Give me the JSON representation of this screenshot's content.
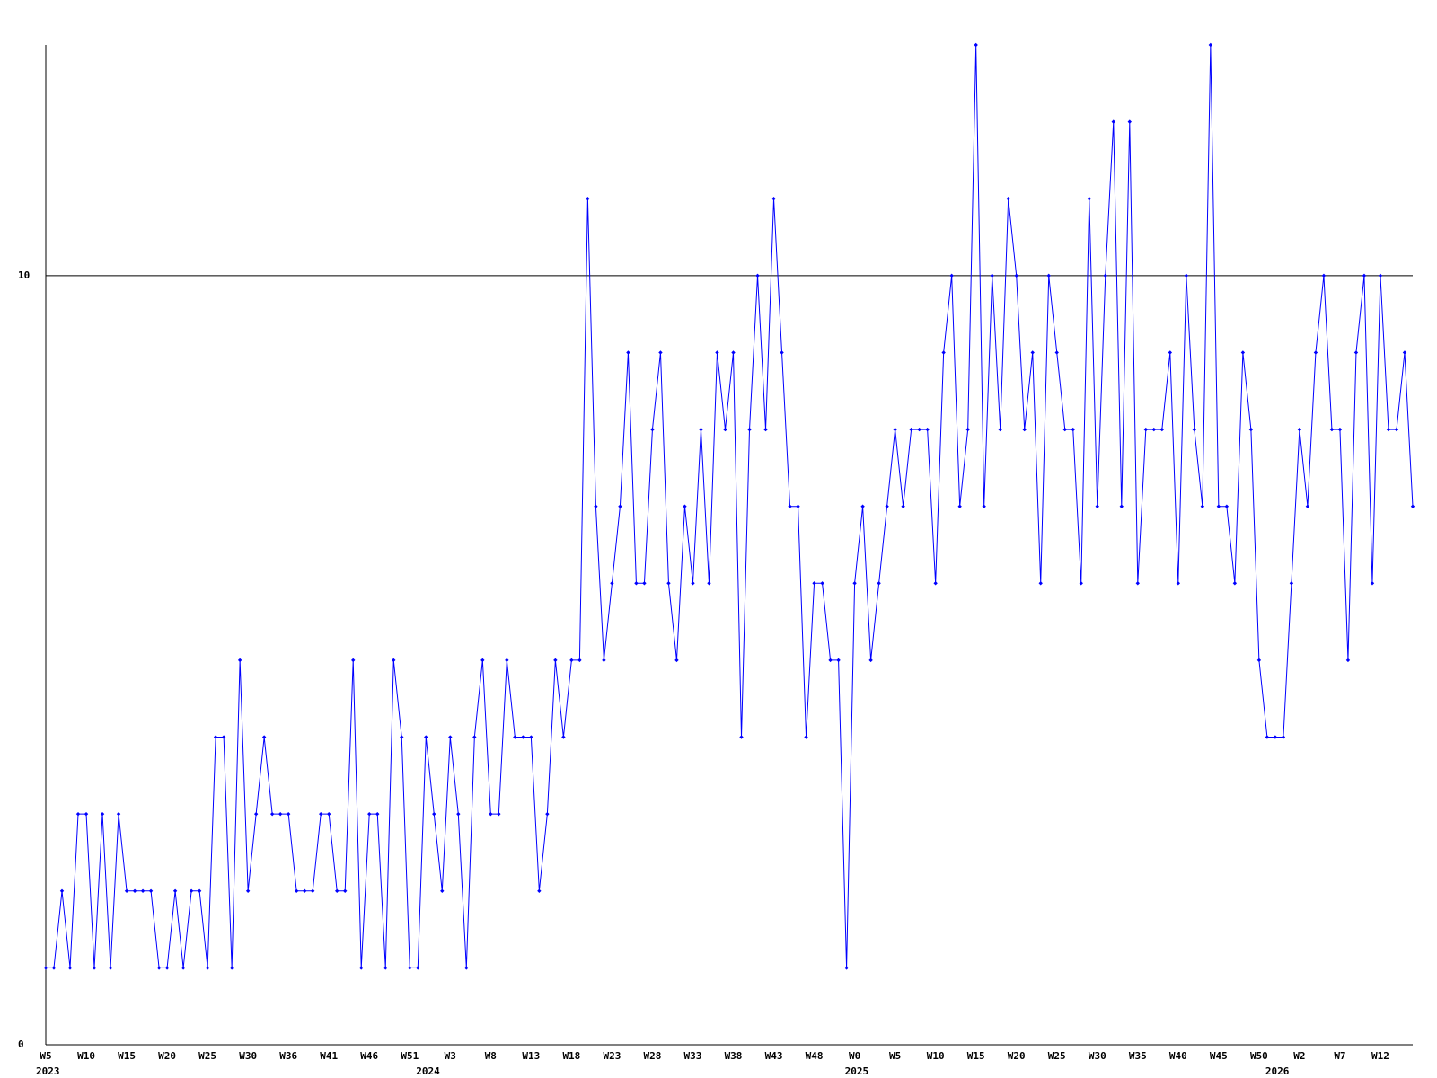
{
  "chart_data": {
    "type": "line",
    "categories": [
      "W5",
      null,
      null,
      null,
      null,
      "W10",
      null,
      null,
      null,
      null,
      "W15",
      null,
      null,
      null,
      null,
      "W20",
      null,
      null,
      null,
      null,
      "W25",
      null,
      null,
      null,
      null,
      "W30",
      null,
      null,
      null,
      null,
      "W36",
      null,
      null,
      null,
      null,
      "W41",
      null,
      null,
      null,
      null,
      "W46",
      null,
      null,
      null,
      null,
      "W51",
      null,
      null,
      null,
      null,
      "W3",
      null,
      null,
      null,
      null,
      "W8",
      null,
      null,
      null,
      null,
      "W13",
      null,
      null,
      null,
      null,
      "W18",
      null,
      null,
      null,
      null,
      "W23",
      null,
      null,
      null,
      null,
      "W28",
      null,
      null,
      null,
      null,
      "W33",
      null,
      null,
      null,
      null,
      "W38",
      null,
      null,
      null,
      null,
      "W43",
      null,
      null,
      null,
      null,
      "W48",
      null,
      null,
      null,
      null,
      "W0",
      null,
      null,
      null,
      null,
      "W5",
      null,
      null,
      null,
      null,
      "W10",
      null,
      null,
      null,
      null,
      "W15",
      null,
      null,
      null,
      null,
      "W20",
      null,
      null,
      null,
      null,
      "W25",
      null,
      null,
      null,
      null,
      "W30",
      null,
      null,
      null,
      null,
      "W35",
      null,
      null,
      null,
      null,
      "W40",
      null,
      null,
      null,
      null,
      "W45",
      null,
      null,
      null,
      null,
      "W50",
      null,
      null,
      null,
      null,
      "W2",
      null,
      null,
      null,
      null,
      "W7",
      null,
      null,
      null,
      null,
      "W12",
      null,
      null,
      null,
      null
    ],
    "category_years": [
      "2023",
      null,
      null,
      null,
      null,
      null,
      null,
      null,
      null,
      null,
      null,
      null,
      null,
      null,
      null,
      null,
      null,
      null,
      null,
      null,
      null,
      null,
      null,
      null,
      null,
      null,
      null,
      null,
      null,
      null,
      null,
      null,
      null,
      null,
      null,
      null,
      null,
      null,
      null,
      null,
      null,
      null,
      null,
      null,
      null,
      null,
      null,
      "2024",
      null,
      null,
      null,
      null,
      null,
      null,
      null,
      null,
      null,
      null,
      null,
      null,
      null,
      null,
      null,
      null,
      null,
      null,
      null,
      null,
      null,
      null,
      null,
      null,
      null,
      null,
      null,
      null,
      null,
      null,
      null,
      null,
      null,
      null,
      null,
      null,
      null,
      null,
      null,
      null,
      null,
      null,
      null,
      null,
      null,
      null,
      null,
      null,
      null,
      null,
      null,
      null,
      "2025",
      null,
      null,
      null,
      null,
      null,
      null,
      null,
      null,
      null,
      null,
      null,
      null,
      null,
      null,
      null,
      null,
      null,
      null,
      null,
      null,
      null,
      null,
      null,
      null,
      null,
      null,
      null,
      null,
      null,
      null,
      null,
      null,
      null,
      null,
      null,
      null,
      null,
      null,
      null,
      null,
      null,
      null,
      null,
      null,
      null,
      null,
      null,
      null,
      null,
      null,
      null,
      "2026",
      null,
      null,
      null,
      null,
      null,
      null,
      null,
      null,
      null,
      null,
      null,
      null,
      null,
      null,
      null,
      null
    ],
    "series": [
      {
        "color": "#0000ff",
        "values": [
          1,
          1,
          2,
          1,
          3,
          3,
          1,
          3,
          1,
          3,
          2,
          2,
          2,
          2,
          1,
          1,
          2,
          1,
          2,
          2,
          1,
          4,
          4,
          1,
          5,
          2,
          3,
          4,
          3,
          3,
          3,
          2,
          2,
          2,
          3,
          3,
          2,
          2,
          5,
          1,
          3,
          3,
          1,
          5,
          4,
          1,
          1,
          4,
          3,
          2,
          4,
          3,
          1,
          4,
          5,
          3,
          3,
          5,
          4,
          4,
          4,
          2,
          3,
          5,
          4,
          5,
          5,
          11,
          7,
          5,
          6,
          7,
          9,
          6,
          6,
          8,
          9,
          6,
          5,
          7,
          6,
          8,
          6,
          9,
          8,
          9,
          4,
          8,
          10,
          8,
          11,
          9,
          7,
          7,
          4,
          6,
          6,
          5,
          5,
          1,
          6,
          7,
          5,
          6,
          7,
          8,
          7,
          8,
          8,
          8,
          6,
          9,
          10,
          7,
          8,
          13,
          7,
          10,
          8,
          11,
          10,
          8,
          9,
          6,
          10,
          9,
          8,
          8,
          6,
          11,
          7,
          10,
          12,
          7,
          12,
          6,
          8,
          8,
          8,
          9,
          6,
          10,
          8,
          7,
          13,
          7,
          7,
          6,
          9,
          8,
          5,
          4,
          4,
          4,
          6,
          8,
          7,
          9,
          10,
          8,
          8,
          5,
          9,
          10,
          6,
          10,
          8,
          8,
          9,
          7
        ]
      }
    ],
    "ylim": [
      0,
      13
    ],
    "yticks": [
      0,
      10
    ],
    "grid": true
  }
}
